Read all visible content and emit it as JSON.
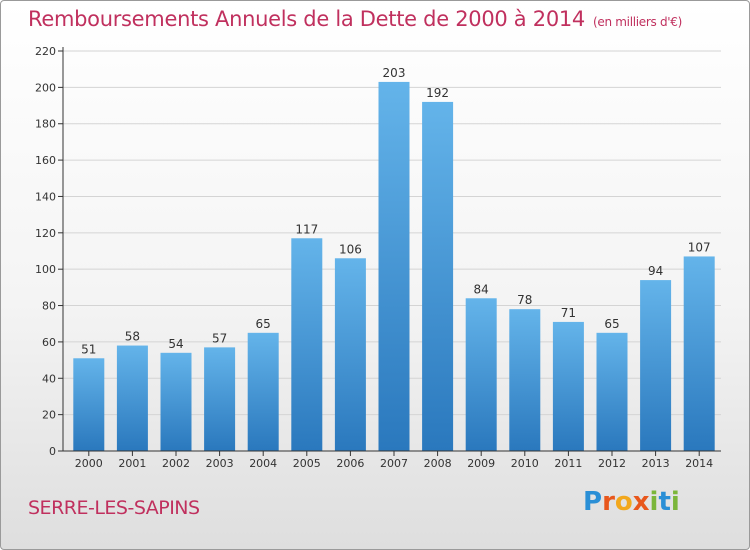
{
  "header": {
    "title": "Remboursements Annuels de la Dette de 2000 à 2014",
    "unit": "(en milliers d'€)"
  },
  "footer": {
    "commune": "SERRE-LES-SAPINS",
    "logo_letters": [
      "P",
      "r",
      "o",
      "x",
      "i",
      "t",
      "i"
    ],
    "logo_colors": [
      "#2a8fd6",
      "#e8571c",
      "#f2a81d",
      "#e8571c",
      "#7bb63a",
      "#2a8fd6",
      "#7bb63a"
    ]
  },
  "colors": {
    "bar_top": "#64b4ea",
    "bar_bottom": "#2a78bd",
    "title": "#c0305e",
    "axis": "#333333",
    "grid": "#d4d4d4"
  },
  "chart_data": {
    "type": "bar",
    "title": "Remboursements Annuels de la Dette de 2000 à 2014",
    "xlabel": "",
    "ylabel": "",
    "ylim": [
      0,
      220
    ],
    "yticks": [
      0,
      20,
      40,
      60,
      80,
      100,
      120,
      140,
      160,
      180,
      200,
      220
    ],
    "categories": [
      "2000",
      "2001",
      "2002",
      "2003",
      "2004",
      "2005",
      "2006",
      "2007",
      "2008",
      "2009",
      "2010",
      "2011",
      "2012",
      "2013",
      "2014"
    ],
    "values": [
      51,
      58,
      54,
      57,
      65,
      117,
      106,
      203,
      192,
      84,
      78,
      71,
      65,
      94,
      107
    ],
    "grid": true,
    "legend": "none"
  }
}
